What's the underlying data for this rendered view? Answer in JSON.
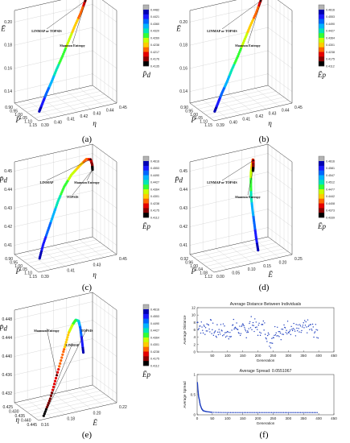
{
  "panel_labels": [
    "(a)",
    "(b)",
    "(c)",
    "(d)",
    "(e)",
    "(f)"
  ],
  "colormap": [
    "#000000",
    "#8b0000",
    "#e60000",
    "#ff6600",
    "#ffcc00",
    "#c8ff00",
    "#33ff33",
    "#00e6b8",
    "#00b3ff",
    "#0066ff",
    "#1a1aff",
    "#0000b3",
    "#b3b3b3"
  ],
  "chart_data": [
    {
      "type": "scatter",
      "panel": "(a)",
      "axes": {
        "z_label": "Ē",
        "x_label": "P̄",
        "y_label": "η"
      },
      "z_ticks": [
        "0.14",
        "0.16",
        "0.18",
        "0.20"
      ],
      "x_ticks": [
        "0.90",
        "0.95",
        "1.00",
        "1.05",
        "1.10",
        "1.15"
      ],
      "y_ticks": [
        "0.39",
        "0.40",
        "0.41",
        "0.42",
        "0.43",
        "0.44",
        "0.45"
      ],
      "annotations": [
        "LINMAP or TOPSIS",
        "Shannon Entropy"
      ],
      "colorbar_label": "P̄d",
      "colorbar_ticks": [
        "0.4482",
        "0.4421",
        "0.4360",
        "0.4320",
        "0.4269",
        "0.4238",
        "0.4217",
        "0.4176",
        "0.4135"
      ],
      "series": [
        {
          "values_xyz": [
            [
              1.13,
              0.392,
              0.142
            ],
            [
              1.1,
              0.397,
              0.146
            ],
            [
              1.07,
              0.402,
              0.15
            ],
            [
              1.04,
              0.408,
              0.155
            ],
            [
              1.01,
              0.414,
              0.161
            ],
            [
              0.98,
              0.421,
              0.168
            ],
            [
              0.95,
              0.428,
              0.176
            ],
            [
              0.93,
              0.434,
              0.184
            ],
            [
              0.915,
              0.44,
              0.192
            ],
            [
              0.905,
              0.444,
              0.199
            ],
            [
              0.9,
              0.447,
              0.205
            ],
            [
              0.9,
              0.449,
              0.21
            ]
          ]
        }
      ]
    },
    {
      "type": "scatter",
      "panel": "(b)",
      "axes": {
        "z_label": "Ē",
        "x_label": "P̄",
        "y_label": "η"
      },
      "z_ticks": [
        "0.14",
        "0.16",
        "0.18",
        "0.20"
      ],
      "x_ticks": [
        "0.90",
        "0.95",
        "1.00",
        "1.05",
        "1.10",
        "1.15"
      ],
      "y_ticks": [
        "0.39",
        "0.40",
        "0.41",
        "0.42",
        "0.43",
        "0.44",
        "0.45"
      ],
      "annotations": [
        "LINMAP or TOPSIS",
        "Shannon Entropy"
      ],
      "colorbar_label": "Ēp",
      "colorbar_ticks": [
        "0.4616",
        "0.4553",
        "0.4490",
        "0.4427",
        "0.4364",
        "0.4301",
        "0.4238",
        "0.4175",
        "0.4112"
      ],
      "series": [
        {
          "values_xyz": [
            [
              1.13,
              0.392,
              0.142
            ],
            [
              1.1,
              0.397,
              0.146
            ],
            [
              1.07,
              0.402,
              0.15
            ],
            [
              1.04,
              0.408,
              0.155
            ],
            [
              1.01,
              0.414,
              0.161
            ],
            [
              0.98,
              0.421,
              0.168
            ],
            [
              0.95,
              0.428,
              0.176
            ],
            [
              0.93,
              0.434,
              0.184
            ],
            [
              0.915,
              0.44,
              0.192
            ],
            [
              0.905,
              0.444,
              0.199
            ],
            [
              0.9,
              0.447,
              0.205
            ],
            [
              0.9,
              0.449,
              0.21
            ]
          ]
        }
      ]
    },
    {
      "type": "scatter",
      "panel": "(c)",
      "axes": {
        "z_label": "P̄d",
        "x_label": "P̄",
        "y_label": "η"
      },
      "z_ticks": [
        "0.41",
        "0.42",
        "0.43",
        "0.44",
        "0.45"
      ],
      "x_ticks": [
        "0.90",
        "0.95",
        "1.00",
        "1.05",
        "1.10",
        "1.15"
      ],
      "y_ticks": [
        "0.39",
        "0.41",
        "0.43",
        "0.45"
      ],
      "annotations": [
        "LINMAP",
        "TOPSIS",
        "Shannon Entropy"
      ],
      "colorbar_label": "Ēp",
      "colorbar_ticks": [
        "0.4616",
        "0.4553",
        "0.4490",
        "0.4427",
        "0.4364",
        "0.4301",
        "0.4238",
        "0.4175",
        "0.4112"
      ],
      "series": [
        {
          "values_xyz": [
            [
              1.12,
              0.393,
              0.413
            ],
            [
              1.09,
              0.398,
              0.418
            ],
            [
              1.06,
              0.404,
              0.423
            ],
            [
              1.03,
              0.41,
              0.428
            ],
            [
              1.0,
              0.416,
              0.433
            ],
            [
              0.97,
              0.423,
              0.438
            ],
            [
              0.95,
              0.43,
              0.442
            ],
            [
              0.94,
              0.437,
              0.445
            ],
            [
              0.93,
              0.443,
              0.447
            ],
            [
              0.92,
              0.447,
              0.446
            ],
            [
              0.91,
              0.449,
              0.443
            ],
            [
              0.9,
              0.45,
              0.44
            ]
          ]
        }
      ]
    },
    {
      "type": "scatter",
      "panel": "(d)",
      "axes": {
        "z_label": "P̄d",
        "x_label": "P̄",
        "y_label": "Ē"
      },
      "z_ticks": [
        "0.41",
        "0.42",
        "0.43",
        "0.44",
        "0.45"
      ],
      "x_ticks": [
        "0.92",
        "0.96",
        "1.00",
        "1.04",
        "1.08",
        "1.12"
      ],
      "y_ticks": [
        "0.00",
        "0.05",
        "0.10",
        "0.15",
        "0.20",
        "0.25"
      ],
      "annotations": [
        "LINMAP or TOPSIS",
        "Shannon Entropy"
      ],
      "colorbar_label": "Ēp",
      "colorbar_ticks": [
        "0.4616",
        "0.4581",
        "0.4547",
        "0.4512",
        "0.4477",
        "0.4442",
        "0.4408",
        "0.4373",
        "0.4339"
      ],
      "series": [
        {
          "values_xyz": [
            [
              1.11,
              0.145,
              0.413
            ],
            [
              1.08,
              0.15,
              0.418
            ],
            [
              1.05,
              0.156,
              0.423
            ],
            [
              1.02,
              0.162,
              0.428
            ],
            [
              0.99,
              0.169,
              0.433
            ],
            [
              0.97,
              0.176,
              0.438
            ],
            [
              0.95,
              0.184,
              0.442
            ],
            [
              0.94,
              0.191,
              0.445
            ],
            [
              0.93,
              0.198,
              0.447
            ],
            [
              0.92,
              0.203,
              0.446
            ],
            [
              0.91,
              0.207,
              0.443
            ],
            [
              0.9,
              0.21,
              0.44
            ]
          ]
        }
      ]
    },
    {
      "type": "scatter",
      "panel": "(e)",
      "axes": {
        "z_label": "P̄d",
        "x_label": "η",
        "y_label": "Ē"
      },
      "z_ticks": [
        "0.432",
        "0.436",
        "0.440",
        "0.444",
        "0.448"
      ],
      "x_ticks": [
        "0.425",
        "0.430",
        "0.435",
        "0.440",
        "0.445"
      ],
      "y_ticks": [
        "0.16",
        "0.18",
        "0.20",
        "0.22"
      ],
      "annotations": [
        "Shannon Entropy",
        "LINMAP",
        "TOPSIS"
      ],
      "colorbar_label": "Ēp",
      "colorbar_ticks": [
        "0.4616",
        "0.4553",
        "0.4490",
        "0.4427",
        "0.4364",
        "0.4301",
        "0.4238",
        "0.4175",
        "0.4112"
      ],
      "series": [
        {
          "values_xyz": [
            [
              0.426,
              0.212,
              0.438
            ],
            [
              0.428,
              0.209,
              0.441
            ],
            [
              0.431,
              0.205,
              0.444
            ],
            [
              0.434,
              0.201,
              0.446
            ],
            [
              0.437,
              0.196,
              0.447
            ],
            [
              0.44,
              0.191,
              0.447
            ],
            [
              0.442,
              0.186,
              0.446
            ],
            [
              0.444,
              0.18,
              0.443
            ],
            [
              0.445,
              0.174,
              0.439
            ],
            [
              0.446,
              0.168,
              0.435
            ],
            [
              0.446,
              0.163,
              0.432
            ]
          ]
        }
      ]
    },
    {
      "type": "scatter",
      "panel": "(f) top",
      "title": "Average Distance Between Individuals",
      "xlabel": "Generation",
      "ylabel": "Average Distance",
      "xlim": [
        0,
        450
      ],
      "ylim": [
        0,
        12
      ],
      "x_ticks": [
        "50",
        "100",
        "150",
        "200",
        "250",
        "300",
        "350",
        "400",
        "450"
      ],
      "y_ticks": [
        "0",
        "2",
        "4",
        "6",
        "8",
        "10",
        "12"
      ],
      "x": [
        0,
        20,
        40,
        60,
        80,
        100,
        120,
        140,
        160,
        180,
        200,
        220,
        240,
        260,
        280,
        300,
        320,
        340,
        360,
        380,
        400
      ],
      "values": [
        8,
        6,
        7.5,
        5,
        6.5,
        4.5,
        7,
        6,
        5.5,
        8,
        6,
        7,
        2.5,
        6.5,
        5,
        7,
        6,
        5.5,
        7,
        6,
        5
      ]
    },
    {
      "type": "scatter",
      "panel": "(f) bottom",
      "title": "Average Spread: 0.0551067",
      "xlabel": "Generation",
      "ylabel": "Average Spread",
      "xlim": [
        0,
        450
      ],
      "ylim": [
        0,
        1
      ],
      "x_ticks": [
        "0",
        "50",
        "100",
        "150",
        "200",
        "250",
        "300",
        "350",
        "400",
        "450"
      ],
      "y_ticks": [
        "0",
        "0.5",
        "1"
      ],
      "x": [
        1,
        3,
        5,
        8,
        10,
        15,
        20,
        30,
        50,
        100,
        150,
        200,
        250,
        300,
        350,
        400
      ],
      "values": [
        0.8,
        0.6,
        0.45,
        0.35,
        0.25,
        0.15,
        0.1,
        0.08,
        0.06,
        0.055,
        0.055,
        0.055,
        0.055,
        0.055,
        0.055,
        0.055
      ]
    }
  ]
}
